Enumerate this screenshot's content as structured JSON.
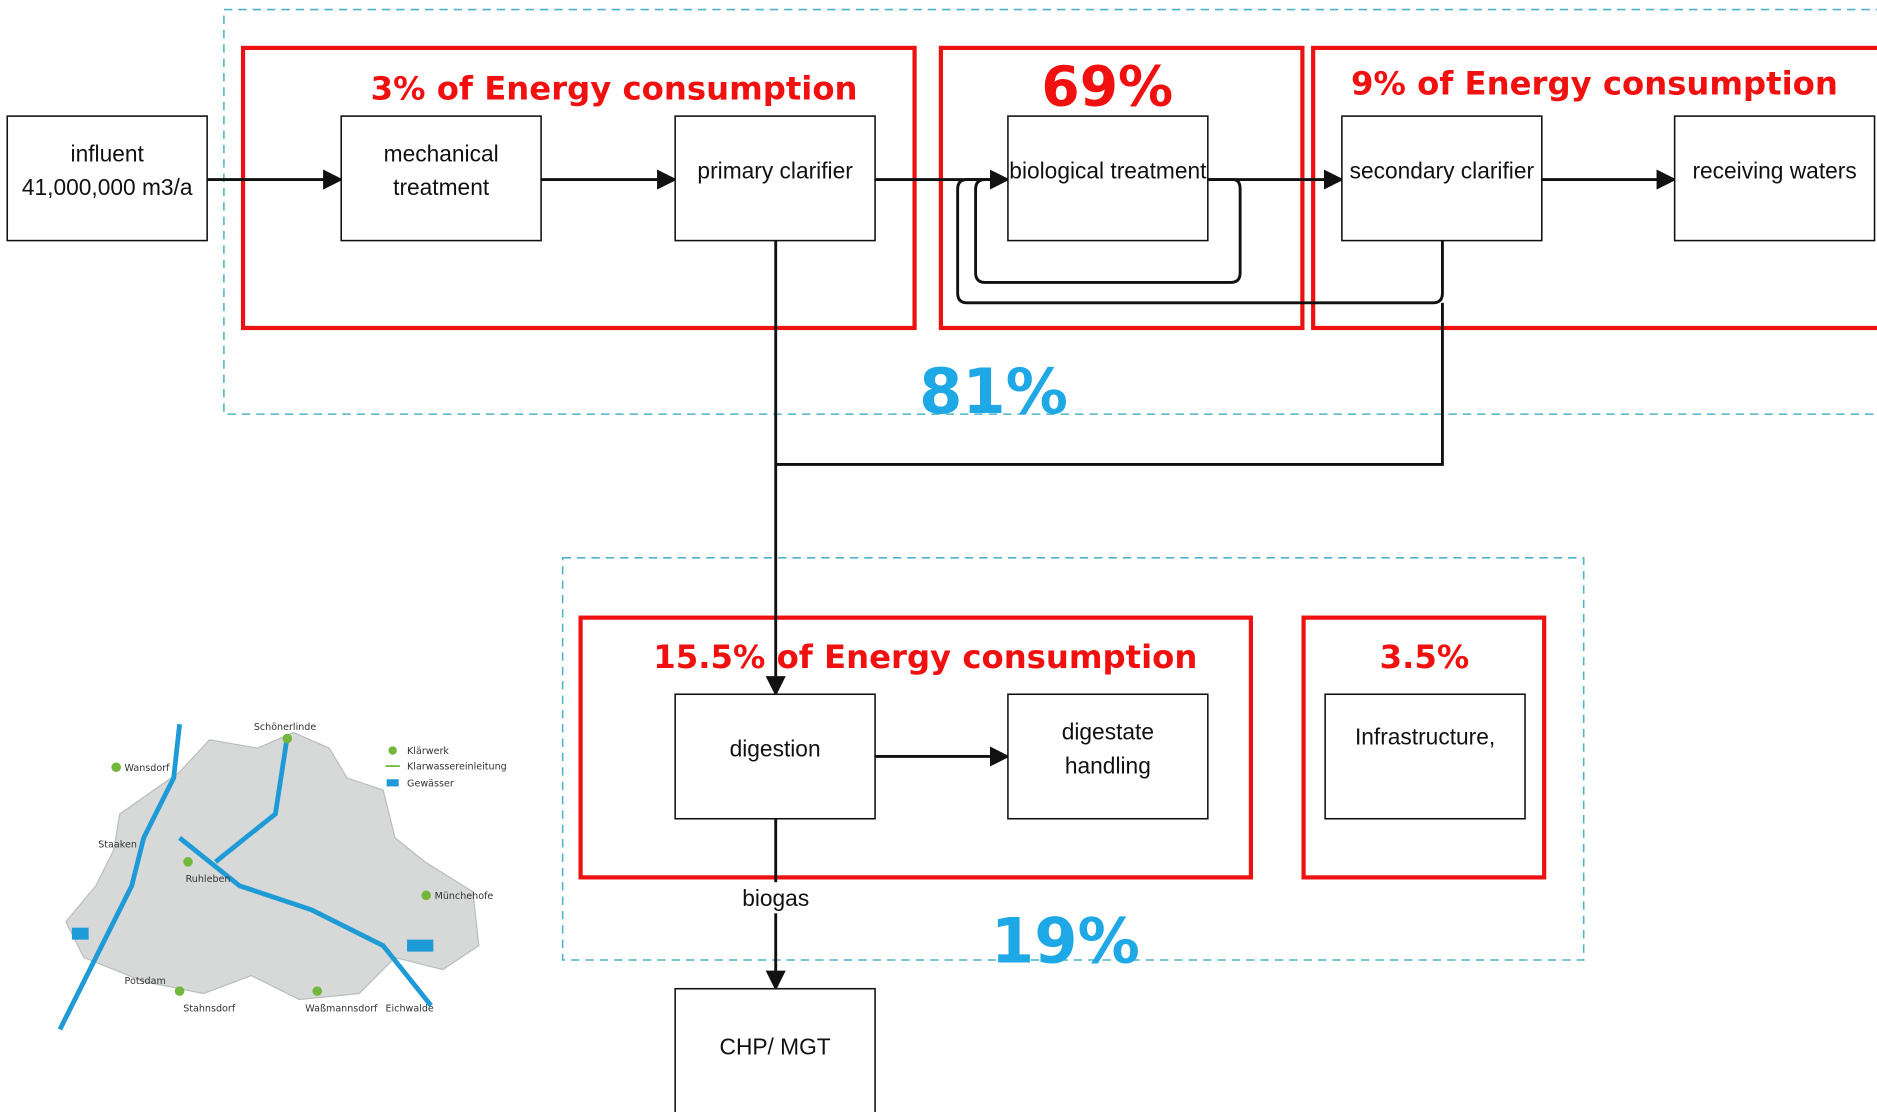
{
  "nodes": [
    {
      "lines": [
        "influent",
        "41,000,000 m3/a"
      ]
    },
    {
      "lines": [
        "mechanical",
        "treatment"
      ]
    },
    {
      "lines": [
        "primary clarifier"
      ]
    },
    {
      "lines": [
        "biological treatment"
      ]
    },
    {
      "lines": [
        "secondary clarifier"
      ]
    },
    {
      "lines": [
        "receiving waters"
      ]
    },
    {
      "lines": [
        "digestion"
      ]
    },
    {
      "lines": [
        "digestate",
        "handling"
      ]
    },
    {
      "lines": [
        "Infrastructure,"
      ]
    },
    {
      "lines": [
        "CHP/ MGT"
      ]
    }
  ],
  "groups": [
    {
      "label": "3% of  Energy consumption"
    },
    {
      "label": "69%"
    },
    {
      "label": "9% of  Energy consumption"
    },
    {
      "label": "15.5%  of  Energy consumption"
    },
    {
      "label": "3.5%"
    }
  ],
  "totals": [
    "81%",
    "19%"
  ],
  "edge_label": "biogas",
  "map": {
    "labels": [
      "Schönerlinde",
      "Wansdorf",
      "Ruhleben",
      "Münchehofe",
      "Stahnsdorf",
      "Waßmannsdorf",
      "Staaken",
      "Potsdam",
      "Eichwalde"
    ],
    "legend": [
      "Klärwerk",
      "Klarwassereinleitung",
      "Gewässer"
    ]
  }
}
